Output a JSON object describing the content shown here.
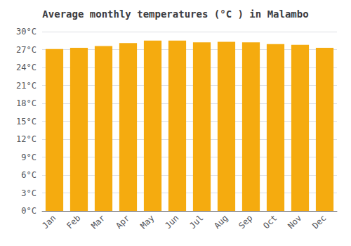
{
  "chart_data": {
    "type": "bar",
    "title": "Average monthly temperatures (°C ) in Malambo",
    "categories": [
      "Jan",
      "Feb",
      "Mar",
      "Apr",
      "May",
      "Jun",
      "Jul",
      "Aug",
      "Sep",
      "Oct",
      "Nov",
      "Dec"
    ],
    "values": [
      27.1,
      27.3,
      27.6,
      28.1,
      28.5,
      28.5,
      28.2,
      28.3,
      28.2,
      27.9,
      27.8,
      27.3
    ],
    "color": "#F5AB0F",
    "ylim": [
      0,
      30
    ],
    "yticks": [
      {
        "value": 0,
        "label": "0°C"
      },
      {
        "value": 3,
        "label": "3°C"
      },
      {
        "value": 6,
        "label": "6°C"
      },
      {
        "value": 9,
        "label": "9°C"
      },
      {
        "value": 12,
        "label": "12°C"
      },
      {
        "value": 15,
        "label": "15°C"
      },
      {
        "value": 18,
        "label": "18°C"
      },
      {
        "value": 21,
        "label": "21°C"
      },
      {
        "value": 24,
        "label": "24°C"
      },
      {
        "value": 27,
        "label": "27°C"
      },
      {
        "value": 30,
        "label": "30°C"
      }
    ],
    "grid": true
  }
}
